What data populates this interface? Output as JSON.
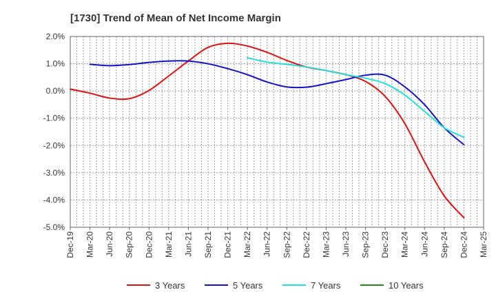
{
  "chart_data": {
    "type": "line",
    "title": "[1730]  Trend of Mean of Net Income Margin",
    "xlabel": "",
    "ylabel": "",
    "x_categories": [
      "Dec-19",
      "Mar-20",
      "Jun-20",
      "Sep-20",
      "Dec-20",
      "Mar-21",
      "Jun-21",
      "Sep-21",
      "Dec-21",
      "Mar-22",
      "Jun-22",
      "Sep-22",
      "Dec-22",
      "Mar-23",
      "Jun-23",
      "Sep-23",
      "Dec-23",
      "Mar-24",
      "Jun-24",
      "Sep-24",
      "Dec-24",
      "Mar-25"
    ],
    "y_ticks": [
      "2.0%",
      "1.0%",
      "0.0%",
      "-1.0%",
      "-2.0%",
      "-3.0%",
      "-4.0%",
      "-5.0%"
    ],
    "ylim": [
      -5.0,
      2.0
    ],
    "grid": true,
    "legend_position": "bottom",
    "series": [
      {
        "name": "3 Years",
        "color": "#dd1111",
        "points": [
          [
            "Dec-19",
            0.07
          ],
          [
            "Mar-20",
            -0.08
          ],
          [
            "Jun-20",
            -0.26
          ],
          [
            "Sep-20",
            -0.28
          ],
          [
            "Dec-20",
            0.02
          ],
          [
            "Mar-21",
            0.55
          ],
          [
            "Jun-21",
            1.1
          ],
          [
            "Sep-21",
            1.6
          ],
          [
            "Dec-21",
            1.75
          ],
          [
            "Mar-22",
            1.65
          ],
          [
            "Jun-22",
            1.42
          ],
          [
            "Sep-22",
            1.12
          ],
          [
            "Dec-22",
            0.88
          ],
          [
            "Mar-23",
            0.75
          ],
          [
            "Jun-23",
            0.6
          ],
          [
            "Sep-23",
            0.35
          ],
          [
            "Dec-23",
            -0.2
          ],
          [
            "Mar-24",
            -1.2
          ],
          [
            "Jun-24",
            -2.6
          ],
          [
            "Sep-24",
            -3.85
          ],
          [
            "Dec-24",
            -4.65
          ]
        ]
      },
      {
        "name": "5 Years",
        "color": "#1111cc",
        "points": [
          [
            "Mar-20",
            0.98
          ],
          [
            "Jun-20",
            0.93
          ],
          [
            "Sep-20",
            0.97
          ],
          [
            "Dec-20",
            1.05
          ],
          [
            "Mar-21",
            1.1
          ],
          [
            "Jun-21",
            1.1
          ],
          [
            "Sep-21",
            1.0
          ],
          [
            "Dec-21",
            0.82
          ],
          [
            "Mar-22",
            0.6
          ],
          [
            "Jun-22",
            0.33
          ],
          [
            "Sep-22",
            0.15
          ],
          [
            "Dec-22",
            0.14
          ],
          [
            "Mar-23",
            0.27
          ],
          [
            "Jun-23",
            0.42
          ],
          [
            "Sep-23",
            0.58
          ],
          [
            "Dec-23",
            0.58
          ],
          [
            "Mar-24",
            0.15
          ],
          [
            "Jun-24",
            -0.5
          ],
          [
            "Sep-24",
            -1.35
          ],
          [
            "Dec-24",
            -1.97
          ]
        ]
      },
      {
        "name": "7 Years",
        "color": "#22dddd",
        "points": [
          [
            "Mar-22",
            1.22
          ],
          [
            "Jun-22",
            1.06
          ],
          [
            "Sep-22",
            0.98
          ],
          [
            "Dec-22",
            0.88
          ],
          [
            "Mar-23",
            0.75
          ],
          [
            "Jun-23",
            0.6
          ],
          [
            "Sep-23",
            0.47
          ],
          [
            "Dec-23",
            0.27
          ],
          [
            "Mar-24",
            -0.15
          ],
          [
            "Jun-24",
            -0.75
          ],
          [
            "Sep-24",
            -1.35
          ],
          [
            "Dec-24",
            -1.7
          ]
        ]
      },
      {
        "name": "10 Years",
        "color": "#228822",
        "points": []
      }
    ]
  }
}
